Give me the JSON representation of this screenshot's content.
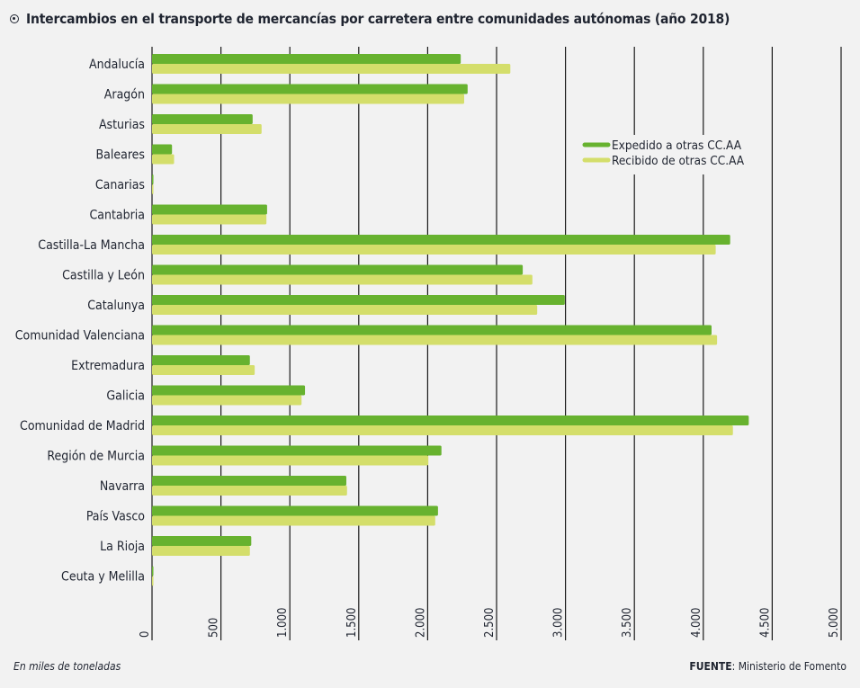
{
  "title": "Intercambios en el transporte de mercancías por carretera entre comunidades autónomas (año 2018)",
  "title_icon": "target-circle-icon",
  "footer": {
    "units_note": "En miles de toneladas",
    "source_label": "FUENTE",
    "source_text": ": Ministerio de Fomento"
  },
  "colors": {
    "expedido": "#67b22f",
    "recibido": "#d4de6b",
    "background": "#f2f2f2",
    "grid": "#1a1a1a"
  },
  "chart_data": {
    "type": "bar",
    "orientation": "horizontal",
    "title": "Intercambios en el transporte de mercancías por carretera entre comunidades autónomas (año 2018)",
    "xlabel": "",
    "ylabel": "",
    "units": "En miles de toneladas",
    "xlim": [
      0,
      5000
    ],
    "x_ticks": [
      0,
      500,
      1000,
      1500,
      2000,
      2500,
      3000,
      3500,
      4000,
      4500,
      5000
    ],
    "x_tick_labels": [
      "0",
      "500",
      "1.000",
      "1.500",
      "2.000",
      "2.500",
      "3.000",
      "3.500",
      "4.000",
      "4.500",
      "5.000"
    ],
    "grid": "vertical",
    "legend_position": "top-right",
    "categories": [
      "Andalucía",
      "Aragón",
      "Asturias",
      "Baleares",
      "Canarias",
      "Cantabria",
      "Castilla-La Mancha",
      "Castilla y León",
      "Catalunya",
      "Comunidad Valenciana",
      "Extremadura",
      "Galicia",
      "Comunidad de Madrid",
      "Región de Murcia",
      "Navarra",
      "País Vasco",
      "La Rioja",
      "Ceuta y Melilla"
    ],
    "series": [
      {
        "name": "Expedido a otras CC.AA",
        "color": "#67b22f",
        "values": [
          2240,
          2290,
          730,
          145,
          10,
          835,
          4195,
          2690,
          2995,
          4060,
          710,
          1110,
          4330,
          2100,
          1410,
          2075,
          720,
          6
        ]
      },
      {
        "name": "Recibido de otras CC.AA",
        "color": "#d4de6b",
        "values": [
          2600,
          2265,
          795,
          160,
          8,
          830,
          4090,
          2760,
          2795,
          4100,
          745,
          1085,
          4215,
          2005,
          1415,
          2055,
          710,
          5
        ]
      }
    ]
  }
}
